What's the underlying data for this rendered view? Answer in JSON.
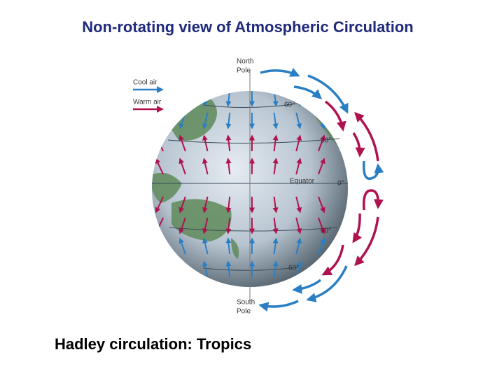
{
  "title": "Non-rotating view of Atmospheric Circulation",
  "legend": [
    {
      "label": "Cool air",
      "color": "#2a7fc4"
    },
    {
      "label": "Warm air",
      "color": "#b0124f"
    }
  ],
  "globe": {
    "north_pole": [
      "North",
      "Pole"
    ],
    "south_pole": [
      "South",
      "Pole"
    ],
    "latitudes": [
      "60°",
      "30°",
      "0°",
      "30°",
      "60°"
    ],
    "equator": "Equator"
  },
  "caption": "Hadley circulation: Tropics"
}
